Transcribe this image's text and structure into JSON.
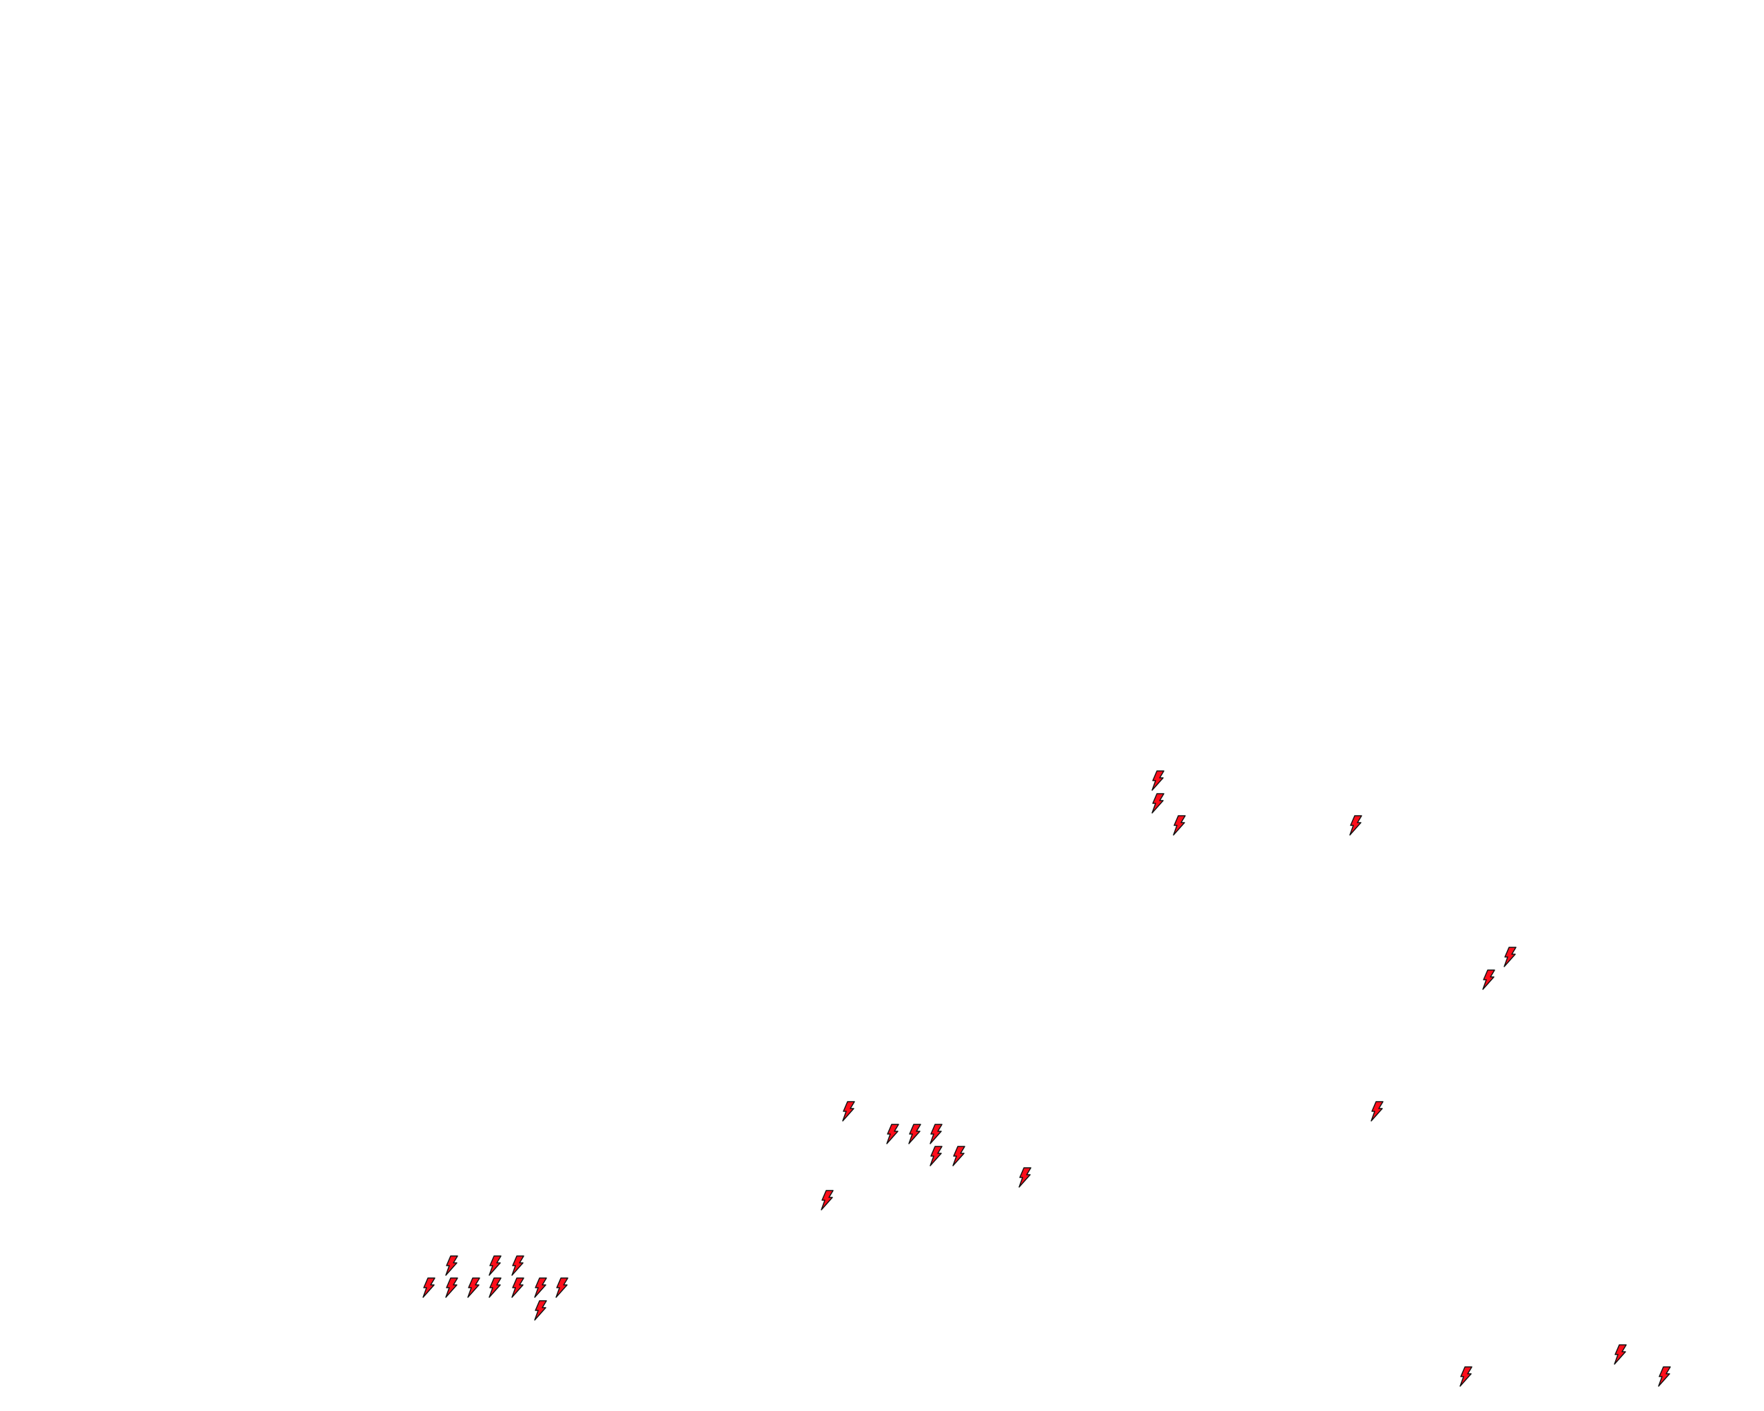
{
  "map": {
    "background_color": "#ffffff",
    "marker_icon": "lightning-bolt-icon",
    "marker_fill": "#ff0d1a",
    "marker_stroke": "#111111",
    "marker_count": 29
  }
}
